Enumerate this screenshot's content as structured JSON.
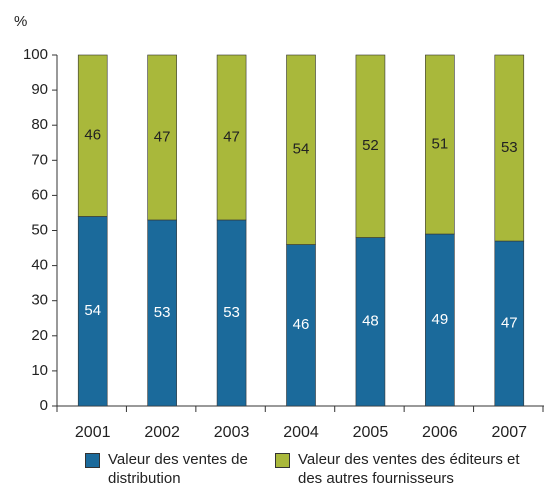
{
  "chart_data": {
    "type": "stacked_bar",
    "y_label": "%",
    "categories": [
      "2001",
      "2002",
      "2003",
      "2004",
      "2005",
      "2006",
      "2007"
    ],
    "series": [
      {
        "name": "Valeur des ventes de distribution",
        "color": "#1b6a9b",
        "values": [
          54,
          53,
          53,
          46,
          48,
          49,
          47
        ]
      },
      {
        "name": "Valeur des ventes des éditeurs et des autres fournisseurs",
        "color": "#a9b83b",
        "values": [
          46,
          47,
          47,
          54,
          52,
          51,
          53
        ]
      }
    ],
    "ylim": [
      0,
      100
    ],
    "yticks": [
      0,
      10,
      20,
      30,
      40,
      50,
      60,
      70,
      80,
      90,
      100
    ],
    "grid": false
  }
}
